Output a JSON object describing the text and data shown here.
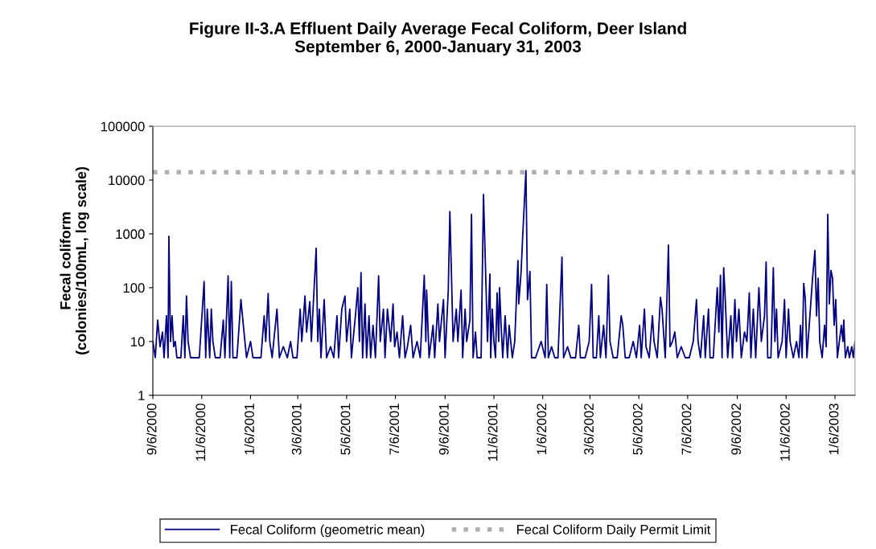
{
  "chart_data": {
    "type": "line",
    "title": "Figure II-3.A Effluent Daily Average Fecal Coliform, Deer Island\nSeptember 6, 2000-January 31, 2003",
    "ylabel": "Fecal coliform\n(colonies/100mL, log scale)",
    "log": "y",
    "ylim": [
      1,
      100000
    ],
    "yticks": [
      1,
      10,
      100,
      1000,
      10000,
      100000
    ],
    "xlim": [
      "2000-09-06",
      "2003-01-31"
    ],
    "xticks": [
      {
        "value": "2000-09-06",
        "label": "9/6/2000"
      },
      {
        "value": "2000-11-06",
        "label": "11/6/2000"
      },
      {
        "value": "2001-01-06",
        "label": "1/6/2001"
      },
      {
        "value": "2001-03-06",
        "label": "3/6/2001"
      },
      {
        "value": "2001-05-06",
        "label": "5/6/2001"
      },
      {
        "value": "2001-07-06",
        "label": "7/6/2001"
      },
      {
        "value": "2001-09-06",
        "label": "9/6/2001"
      },
      {
        "value": "2001-11-06",
        "label": "11/6/2001"
      },
      {
        "value": "2002-01-06",
        "label": "1/6/2002"
      },
      {
        "value": "2002-03-06",
        "label": "3/6/2002"
      },
      {
        "value": "2002-05-06",
        "label": "5/6/2002"
      },
      {
        "value": "2002-07-06",
        "label": "7/6/2002"
      },
      {
        "value": "2002-09-06",
        "label": "9/6/2002"
      },
      {
        "value": "2002-11-06",
        "label": "11/6/2002"
      },
      {
        "value": "2003-01-06",
        "label": "1/6/2003"
      }
    ],
    "grid": false,
    "legend": "bottom",
    "marker": "none",
    "line_style": "solid",
    "ref_lines": [
      {
        "axis": "y",
        "value": 14000,
        "label": "Fecal Coliform Daily Permit Limit",
        "color": "#b0b0b0",
        "line_style": "dotted"
      }
    ],
    "x": [
      "2000-09-06",
      "2000-09-09",
      "2000-09-12",
      "2000-09-15",
      "2000-09-18",
      "2000-09-20",
      "2000-09-23",
      "2000-09-25",
      "2000-09-26",
      "2000-09-28",
      "2000-09-30",
      "2000-10-02",
      "2000-10-04",
      "2000-10-06",
      "2000-10-11",
      "2000-10-14",
      "2000-10-16",
      "2000-10-18",
      "2000-10-20",
      "2000-10-23",
      "2000-10-28",
      "2000-11-03",
      "2000-11-09",
      "2000-11-11",
      "2000-11-13",
      "2000-11-16",
      "2000-11-18",
      "2000-11-20",
      "2000-11-23",
      "2000-11-29",
      "2000-12-03",
      "2000-12-05",
      "2000-12-09",
      "2000-12-11",
      "2000-12-13",
      "2000-12-15",
      "2000-12-20",
      "2000-12-25",
      "2000-12-28",
      "2001-01-01",
      "2001-01-06",
      "2001-01-09",
      "2001-01-14",
      "2001-01-19",
      "2001-01-23",
      "2001-01-25",
      "2001-01-28",
      "2001-01-30",
      "2001-02-02",
      "2001-02-08",
      "2001-02-11",
      "2001-02-16",
      "2001-02-21",
      "2001-02-25",
      "2001-02-28",
      "2001-03-05",
      "2001-03-09",
      "2001-03-11",
      "2001-03-15",
      "2001-03-17",
      "2001-03-21",
      "2001-03-23",
      "2001-03-29",
      "2001-03-31",
      "2001-04-02",
      "2001-04-04",
      "2001-04-08",
      "2001-04-11",
      "2001-04-16",
      "2001-04-20",
      "2001-04-24",
      "2001-04-26",
      "2001-04-30",
      "2001-05-04",
      "2001-05-06",
      "2001-05-10",
      "2001-05-12",
      "2001-05-17",
      "2001-05-20",
      "2001-05-22",
      "2001-05-24",
      "2001-05-26",
      "2001-05-29",
      "2001-05-31",
      "2001-06-03",
      "2001-06-05",
      "2001-06-08",
      "2001-06-11",
      "2001-06-15",
      "2001-06-17",
      "2001-06-21",
      "2001-06-23",
      "2001-06-26",
      "2001-06-30",
      "2001-07-03",
      "2001-07-05",
      "2001-07-08",
      "2001-07-11",
      "2001-07-15",
      "2001-07-18",
      "2001-07-21",
      "2001-07-25",
      "2001-07-28",
      "2001-08-02",
      "2001-08-06",
      "2001-08-11",
      "2001-08-13",
      "2001-08-14",
      "2001-08-17",
      "2001-08-22",
      "2001-08-24",
      "2001-08-28",
      "2001-08-30",
      "2001-09-04",
      "2001-09-06",
      "2001-09-10",
      "2001-09-12",
      "2001-09-14",
      "2001-09-16",
      "2001-09-20",
      "2001-09-22",
      "2001-09-26",
      "2001-09-28",
      "2001-10-01",
      "2001-10-03",
      "2001-10-07",
      "2001-10-09",
      "2001-10-11",
      "2001-10-14",
      "2001-10-16",
      "2001-10-21",
      "2001-10-24",
      "2001-10-29",
      "2001-11-01",
      "2001-11-02",
      "2001-11-04",
      "2001-11-06",
      "2001-11-08",
      "2001-11-10",
      "2001-11-12",
      "2001-11-13",
      "2001-11-15",
      "2001-11-17",
      "2001-11-20",
      "2001-11-23",
      "2001-11-25",
      "2001-11-29",
      "2001-12-02",
      "2001-12-06",
      "2001-12-07",
      "2001-12-10",
      "2001-12-12",
      "2001-12-16",
      "2001-12-18",
      "2001-12-21",
      "2001-12-23",
      "2001-12-28",
      "2002-01-04",
      "2002-01-09",
      "2002-01-11",
      "2002-01-13",
      "2002-01-17",
      "2002-01-21",
      "2002-01-25",
      "2002-01-30",
      "2002-02-01",
      "2002-02-06",
      "2002-02-10",
      "2002-02-16",
      "2002-02-20",
      "2002-02-22",
      "2002-02-28",
      "2002-03-05",
      "2002-03-08",
      "2002-03-10",
      "2002-03-14",
      "2002-03-17",
      "2002-03-19",
      "2002-03-23",
      "2002-03-26",
      "2002-03-29",
      "2002-03-31",
      "2002-04-04",
      "2002-04-09",
      "2002-04-14",
      "2002-04-16",
      "2002-04-19",
      "2002-04-24",
      "2002-04-29",
      "2002-05-03",
      "2002-05-07",
      "2002-05-09",
      "2002-05-13",
      "2002-05-15",
      "2002-05-19",
      "2002-05-23",
      "2002-05-25",
      "2002-05-29",
      "2002-06-02",
      "2002-06-04",
      "2002-06-08",
      "2002-06-12",
      "2002-06-14",
      "2002-06-17",
      "2002-06-20",
      "2002-06-23",
      "2002-06-28",
      "2002-07-03",
      "2002-07-08",
      "2002-07-13",
      "2002-07-17",
      "2002-07-19",
      "2002-07-22",
      "2002-07-26",
      "2002-07-28",
      "2002-08-01",
      "2002-08-03",
      "2002-08-07",
      "2002-08-12",
      "2002-08-14",
      "2002-08-16",
      "2002-08-18",
      "2002-08-20",
      "2002-08-22",
      "2002-08-25",
      "2002-08-29",
      "2002-08-31",
      "2002-09-03",
      "2002-09-05",
      "2002-09-08",
      "2002-09-11",
      "2002-09-15",
      "2002-09-18",
      "2002-09-21",
      "2002-09-23",
      "2002-09-26",
      "2002-09-29",
      "2002-10-03",
      "2002-10-06",
      "2002-10-10",
      "2002-10-12",
      "2002-10-14",
      "2002-10-18",
      "2002-10-21",
      "2002-10-23",
      "2002-10-25",
      "2002-10-27",
      "2002-11-01",
      "2002-11-04",
      "2002-11-06",
      "2002-11-09",
      "2002-11-11",
      "2002-11-15",
      "2002-11-19",
      "2002-11-22",
      "2002-11-24",
      "2002-11-26",
      "2002-11-28",
      "2002-11-30",
      "2002-12-02",
      "2002-12-09",
      "2002-12-12",
      "2002-12-14",
      "2002-12-16",
      "2002-12-18",
      "2002-12-21",
      "2002-12-24",
      "2002-12-26",
      "2002-12-28",
      "2002-12-30",
      "2003-01-01",
      "2003-01-03",
      "2003-01-05",
      "2003-01-07",
      "2003-01-09",
      "2003-01-14",
      "2003-01-16",
      "2003-01-17",
      "2003-01-19",
      "2003-01-22",
      "2003-01-24",
      "2003-01-27",
      "2003-01-29",
      "2003-01-31"
    ],
    "series": [
      {
        "name": "Fecal Coliform (geometric mean)",
        "color": "#000080",
        "values": [
          10,
          5,
          25,
          8,
          15,
          5,
          30,
          5,
          900,
          10,
          30,
          8,
          10,
          5,
          5,
          30,
          5,
          70,
          10,
          5,
          5,
          5,
          130,
          5,
          40,
          5,
          40,
          10,
          5,
          5,
          25,
          5,
          166,
          5,
          130,
          5,
          5,
          60,
          20,
          5,
          10,
          5,
          5,
          5,
          30,
          10,
          78,
          10,
          5,
          40,
          5,
          8,
          5,
          10,
          5,
          5,
          40,
          10,
          70,
          15,
          55,
          10,
          540,
          10,
          40,
          5,
          60,
          5,
          8,
          5,
          30,
          5,
          40,
          70,
          10,
          40,
          5,
          30,
          100,
          10,
          190,
          5,
          50,
          5,
          30,
          5,
          20,
          5,
          166,
          10,
          40,
          5,
          40,
          10,
          50,
          8,
          15,
          5,
          30,
          5,
          8,
          20,
          5,
          10,
          5,
          170,
          10,
          90,
          5,
          20,
          5,
          50,
          10,
          60,
          5,
          90,
          2600,
          170,
          10,
          40,
          10,
          90,
          5,
          40,
          10,
          25,
          2300,
          5,
          15,
          5,
          5,
          5400,
          10,
          180,
          5,
          40,
          10,
          5,
          80,
          10,
          100,
          20,
          5,
          30,
          5,
          20,
          5,
          10,
          320,
          50,
          200,
          940,
          15000,
          60,
          200,
          5,
          5,
          10,
          5,
          115,
          5,
          8,
          5,
          5,
          370,
          5,
          8,
          5,
          5,
          20,
          5,
          5,
          10,
          115,
          5,
          5,
          30,
          5,
          20,
          5,
          170,
          10,
          5,
          5,
          30,
          20,
          5,
          5,
          10,
          5,
          20,
          5,
          40,
          8,
          5,
          30,
          10,
          5,
          66,
          40,
          5,
          620,
          8,
          10,
          15,
          5,
          8,
          5,
          5,
          10,
          60,
          10,
          5,
          30,
          5,
          40,
          5,
          5,
          100,
          15,
          170,
          5,
          235,
          60,
          5,
          30,
          5,
          60,
          10,
          40,
          5,
          15,
          10,
          80,
          5,
          40,
          5,
          100,
          10,
          30,
          300,
          5,
          5,
          235,
          10,
          40,
          5,
          10,
          60,
          5,
          40,
          10,
          5,
          10,
          5,
          20,
          5,
          120,
          60,
          5,
          150,
          490,
          30,
          150,
          10,
          5,
          20,
          8,
          2300,
          50,
          210,
          150,
          20,
          60,
          5,
          20,
          10,
          25,
          5,
          8,
          5,
          8,
          5,
          10
        ]
      }
    ]
  }
}
